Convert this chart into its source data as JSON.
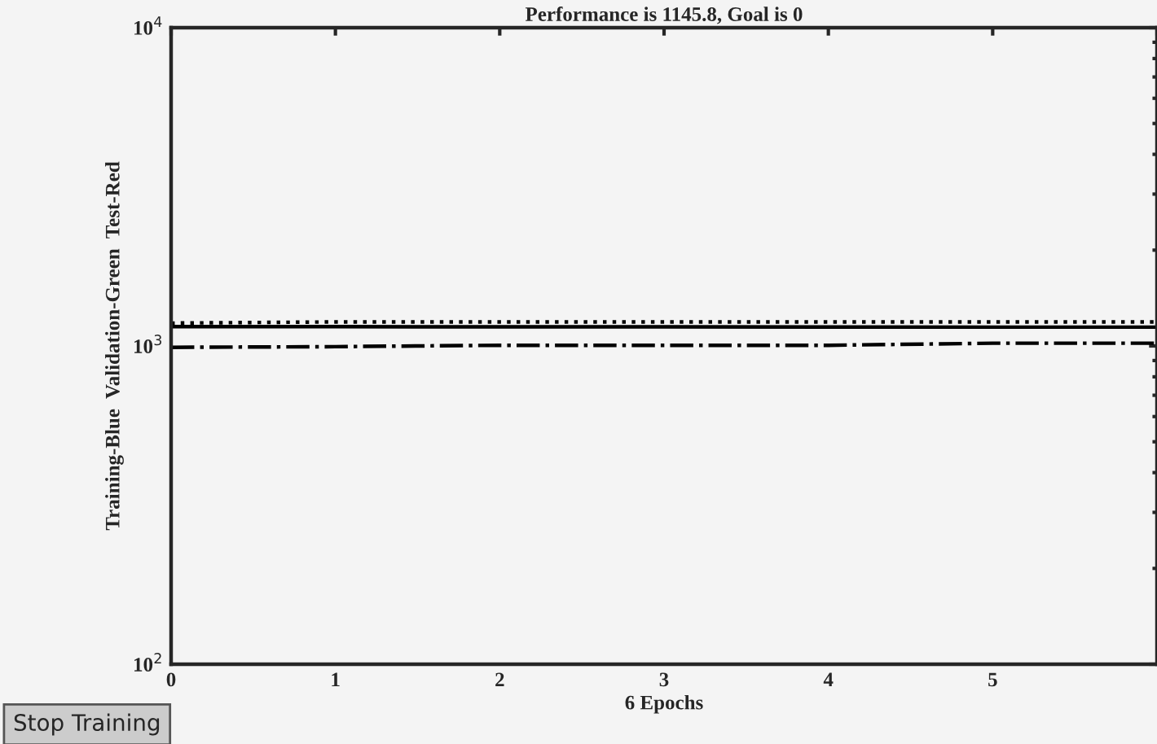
{
  "chart_data": {
    "type": "line",
    "title": "Performance is 1145.8, Goal is 0",
    "xlabel": "6 Epochs",
    "ylabel": "Training-Blue  Validation-Green  Test-Red",
    "x": [
      0,
      1,
      2,
      3,
      4,
      5,
      6
    ],
    "series": [
      {
        "color": "#000000",
        "line_style": "solid",
        "values": [
          1150,
          1150,
          1148,
          1148,
          1147,
          1146,
          1145.8
        ]
      },
      {
        "color": "#000000",
        "line_style": "dotted",
        "values": [
          1180,
          1190,
          1190,
          1190,
          1190,
          1190,
          1190
        ]
      },
      {
        "color": "#000000",
        "line_style": "dashdot",
        "values": [
          990,
          995,
          1005,
          1005,
          1005,
          1020,
          1020
        ]
      }
    ],
    "log": "y",
    "xlim": [
      0,
      6
    ],
    "xticks": [
      0,
      1,
      2,
      3,
      4,
      5,
      {
        "value": 6,
        "label": null
      }
    ],
    "ylim": [
      100,
      10000
    ],
    "yticks": [
      {
        "value": 100,
        "label": "10$^{2}$"
      },
      {
        "value": 1000,
        "label": "10$^{3}$"
      },
      {
        "value": 10000,
        "label": "10$^{4}$"
      }
    ],
    "grid": false,
    "legend": false,
    "annotations": [
      "Stop Training"
    ]
  }
}
